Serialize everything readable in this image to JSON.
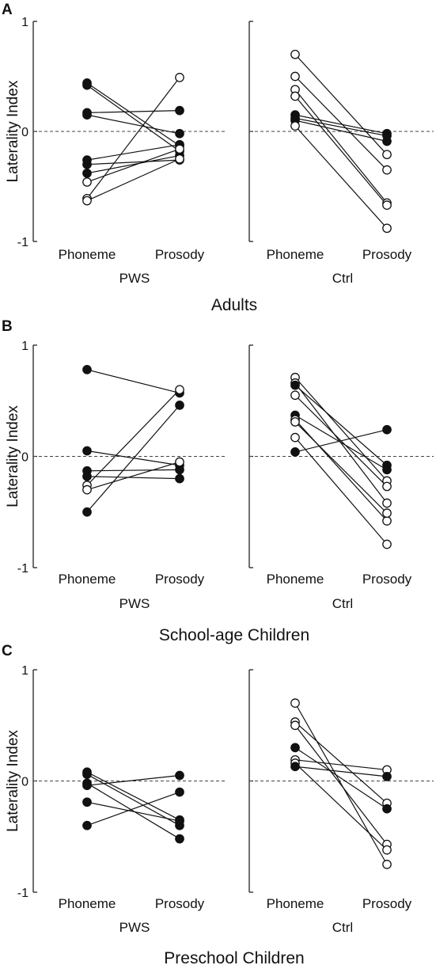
{
  "chart_data": [
    {
      "type": "line",
      "panel": "A",
      "title": "Adults",
      "ylabel": "Laterality Index",
      "ylim": [
        -1,
        1
      ],
      "yticks": [
        "1",
        "0",
        "-1"
      ],
      "reference_line": 0,
      "groups": [
        {
          "name": "PWS",
          "categories": [
            "Phoneme",
            "Prosody"
          ],
          "subjects": [
            {
              "values": [
                0.44,
                -0.13
              ],
              "filled": true
            },
            {
              "values": [
                0.42,
                -0.18
              ],
              "filled": true
            },
            {
              "values": [
                0.17,
                0.19
              ],
              "filled": true
            },
            {
              "values": [
                0.15,
                -0.02
              ],
              "filled": true
            },
            {
              "values": [
                -0.26,
                -0.12
              ],
              "filled": true
            },
            {
              "values": [
                -0.3,
                -0.26
              ],
              "filled": true
            },
            {
              "values": [
                -0.38,
                -0.22
              ],
              "filled": true
            },
            {
              "values": [
                -0.46,
                -0.16
              ],
              "filled": false
            },
            {
              "values": [
                -0.61,
                0.49
              ],
              "filled": false
            },
            {
              "values": [
                -0.63,
                -0.25
              ],
              "filled": false
            }
          ]
        },
        {
          "name": "Ctrl",
          "categories": [
            "Phoneme",
            "Prosody"
          ],
          "subjects": [
            {
              "values": [
                0.7,
                -0.21
              ],
              "filled": false
            },
            {
              "values": [
                0.5,
                -0.35
              ],
              "filled": false
            },
            {
              "values": [
                0.38,
                -0.65
              ],
              "filled": false
            },
            {
              "values": [
                0.32,
                -0.67
              ],
              "filled": false
            },
            {
              "values": [
                0.15,
                -0.02
              ],
              "filled": true
            },
            {
              "values": [
                0.12,
                -0.04
              ],
              "filled": true
            },
            {
              "values": [
                0.1,
                -0.09
              ],
              "filled": true
            },
            {
              "values": [
                0.05,
                -0.88
              ],
              "filled": false
            }
          ]
        }
      ]
    },
    {
      "type": "line",
      "panel": "B",
      "title": "School-age Children",
      "ylabel": "Laterality Index",
      "ylim": [
        -1,
        1
      ],
      "yticks": [
        "1",
        "0",
        "-1"
      ],
      "reference_line": 0,
      "groups": [
        {
          "name": "PWS",
          "categories": [
            "Phoneme",
            "Prosody"
          ],
          "subjects": [
            {
              "values": [
                0.78,
                0.57
              ],
              "filled": true
            },
            {
              "values": [
                0.05,
                -0.08
              ],
              "filled": true
            },
            {
              "values": [
                -0.13,
                -0.12
              ],
              "filled": true
            },
            {
              "values": [
                -0.18,
                -0.2
              ],
              "filled": true
            },
            {
              "values": [
                -0.26,
                0.6
              ],
              "filled": false
            },
            {
              "values": [
                -0.3,
                -0.05
              ],
              "filled": false
            },
            {
              "values": [
                -0.5,
                0.46
              ],
              "filled": true
            }
          ]
        },
        {
          "name": "Ctrl",
          "categories": [
            "Phoneme",
            "Prosody"
          ],
          "subjects": [
            {
              "values": [
                0.71,
                -0.22
              ],
              "filled": false
            },
            {
              "values": [
                0.66,
                -0.42
              ],
              "filled": false
            },
            {
              "values": [
                0.64,
                -0.08
              ],
              "filled": true
            },
            {
              "values": [
                0.55,
                -0.27
              ],
              "filled": false
            },
            {
              "values": [
                0.37,
                -0.12
              ],
              "filled": true
            },
            {
              "values": [
                0.33,
                -0.58
              ],
              "filled": false
            },
            {
              "values": [
                0.31,
                -0.51
              ],
              "filled": false
            },
            {
              "values": [
                0.17,
                -0.79
              ],
              "filled": false
            },
            {
              "values": [
                0.04,
                0.24
              ],
              "filled": true
            }
          ]
        }
      ]
    },
    {
      "type": "line",
      "panel": "C",
      "title": "Preschool Children",
      "ylabel": "Laterality Index",
      "ylim": [
        -1,
        1
      ],
      "yticks": [
        "1",
        "0",
        "-1"
      ],
      "reference_line": 0,
      "groups": [
        {
          "name": "PWS",
          "categories": [
            "Phoneme",
            "Prosody"
          ],
          "subjects": [
            {
              "values": [
                0.08,
                -0.35
              ],
              "filled": true
            },
            {
              "values": [
                0.06,
                -0.4
              ],
              "filled": true
            },
            {
              "values": [
                -0.02,
                -0.52
              ],
              "filled": true
            },
            {
              "values": [
                -0.04,
                0.05
              ],
              "filled": true
            },
            {
              "values": [
                -0.19,
                -0.36
              ],
              "filled": true
            },
            {
              "values": [
                -0.4,
                -0.1
              ],
              "filled": true
            }
          ]
        },
        {
          "name": "Ctrl",
          "categories": [
            "Phoneme",
            "Prosody"
          ],
          "subjects": [
            {
              "values": [
                0.7,
                -0.75
              ],
              "filled": false
            },
            {
              "values": [
                0.53,
                -0.2
              ],
              "filled": false
            },
            {
              "values": [
                0.5,
                -0.57
              ],
              "filled": false
            },
            {
              "values": [
                0.3,
                -0.25
              ],
              "filled": true
            },
            {
              "values": [
                0.19,
                0.1
              ],
              "filled": false
            },
            {
              "values": [
                0.16,
                -0.62
              ],
              "filled": false
            },
            {
              "values": [
                0.13,
                0.04
              ],
              "filled": true
            }
          ]
        }
      ]
    }
  ]
}
